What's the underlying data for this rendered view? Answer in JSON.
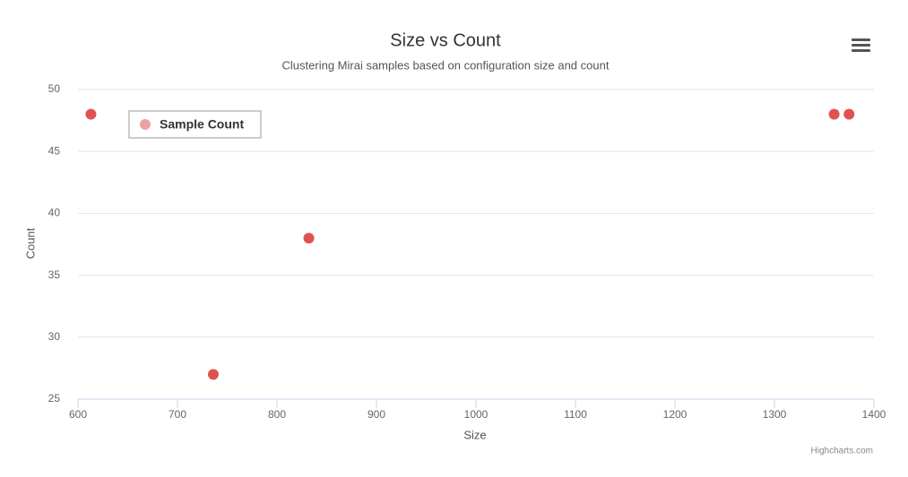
{
  "chart_data": {
    "type": "scatter",
    "title": "Size vs Count",
    "subtitle": "Clustering Mirai samples based on configuration size and count",
    "x_label": "Size",
    "y_label": "Count",
    "credits": "Highcharts.com",
    "series": [
      {
        "name": "Sample Count",
        "color": "#e05252",
        "x": [
          613,
          736,
          832,
          1360,
          1375
        ],
        "values": [
          48,
          27,
          38,
          48,
          48
        ]
      }
    ],
    "xlim": [
      600,
      1400
    ],
    "xticks": [
      600,
      700,
      800,
      900,
      1000,
      1100,
      1200,
      1300,
      1400
    ],
    "ylim": [
      25,
      50
    ],
    "yticks": [
      25,
      30,
      35,
      40,
      45,
      50
    ],
    "grid": true,
    "legend": "top-left"
  }
}
